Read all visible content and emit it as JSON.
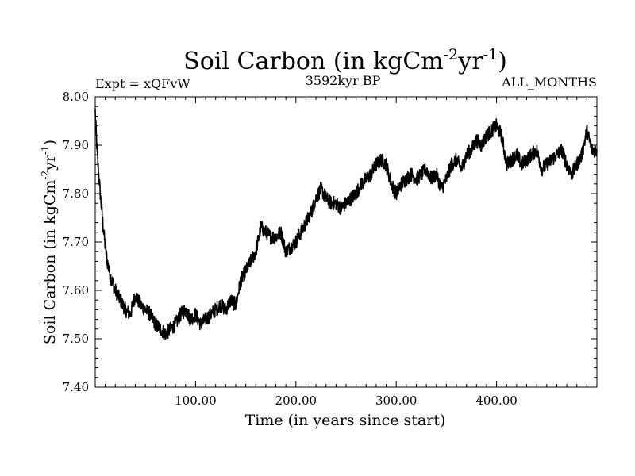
{
  "chart_data": {
    "type": "line",
    "title": "Soil Carbon (in kgCm",
    "title_sup1": "-2",
    "title_mid": "yr",
    "title_sup2": "-1",
    "title_end": ")",
    "expt_label": "Expt = xQFvW",
    "period_label": "3592kyr BP",
    "months_label": "ALL_MONTHS",
    "xlabel": "Time (in years since start)",
    "ylabel": "Soil Carbon (in kgCm",
    "ylabel_sup1": "-2",
    "ylabel_mid": "yr",
    "ylabel_sup2": "-1",
    "ylabel_end": ")",
    "xlim": [
      0,
      500
    ],
    "ylim": [
      7.4,
      8.0
    ],
    "x_ticks": [
      100,
      200,
      300,
      400
    ],
    "x_tick_labels": [
      "100.00",
      "200.00",
      "300.00",
      "400.00"
    ],
    "y_ticks": [
      7.4,
      7.5,
      7.6,
      7.7,
      7.8,
      7.9,
      8.0
    ],
    "y_tick_labels": [
      "7.40",
      "7.50",
      "7.60",
      "7.70",
      "7.80",
      "7.90",
      "8.00"
    ],
    "series": [
      {
        "name": "Soil Carbon",
        "x": [
          0,
          2,
          5,
          8,
          10,
          12,
          15,
          20,
          25,
          30,
          35,
          40,
          45,
          50,
          55,
          60,
          65,
          70,
          75,
          80,
          85,
          90,
          95,
          100,
          105,
          110,
          115,
          120,
          125,
          130,
          135,
          140,
          145,
          150,
          155,
          160,
          165,
          170,
          175,
          180,
          185,
          190,
          195,
          200,
          205,
          210,
          215,
          220,
          225,
          230,
          235,
          240,
          245,
          250,
          255,
          260,
          265,
          270,
          275,
          280,
          285,
          290,
          295,
          300,
          305,
          310,
          315,
          320,
          325,
          330,
          335,
          340,
          345,
          350,
          355,
          360,
          365,
          370,
          375,
          380,
          385,
          390,
          395,
          400,
          405,
          410,
          415,
          420,
          425,
          430,
          435,
          440,
          445,
          450,
          455,
          460,
          465,
          470,
          475,
          480,
          485,
          490,
          495,
          500
        ],
        "y": [
          7.97,
          7.88,
          7.8,
          7.73,
          7.69,
          7.66,
          7.63,
          7.6,
          7.58,
          7.56,
          7.55,
          7.59,
          7.57,
          7.56,
          7.55,
          7.53,
          7.52,
          7.51,
          7.52,
          7.53,
          7.55,
          7.56,
          7.54,
          7.55,
          7.53,
          7.54,
          7.55,
          7.56,
          7.57,
          7.56,
          7.58,
          7.57,
          7.62,
          7.64,
          7.66,
          7.68,
          7.73,
          7.72,
          7.71,
          7.71,
          7.72,
          7.68,
          7.69,
          7.7,
          7.72,
          7.74,
          7.76,
          7.79,
          7.81,
          7.79,
          7.78,
          7.78,
          7.77,
          7.78,
          7.79,
          7.8,
          7.82,
          7.83,
          7.84,
          7.86,
          7.87,
          7.86,
          7.82,
          7.8,
          7.82,
          7.83,
          7.84,
          7.83,
          7.84,
          7.85,
          7.83,
          7.84,
          7.81,
          7.83,
          7.86,
          7.87,
          7.85,
          7.88,
          7.89,
          7.91,
          7.9,
          7.92,
          7.93,
          7.94,
          7.92,
          7.86,
          7.87,
          7.88,
          7.86,
          7.87,
          7.88,
          7.89,
          7.85,
          7.86,
          7.87,
          7.88,
          7.89,
          7.86,
          7.84,
          7.86,
          7.88,
          7.93,
          7.89,
          7.89
        ]
      }
    ]
  }
}
